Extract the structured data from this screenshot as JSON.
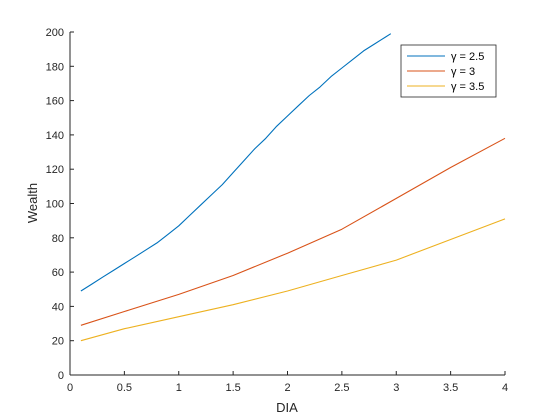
{
  "chart_data": {
    "type": "line",
    "title": "",
    "xlabel": "DIA",
    "ylabel": "Wealth",
    "xlim": [
      0,
      4
    ],
    "ylim": [
      0,
      200
    ],
    "xticks": [
      0,
      0.5,
      1,
      1.5,
      2,
      2.5,
      3,
      3.5,
      4
    ],
    "xtick_labels": [
      "0",
      "0.5",
      "1",
      "1.5",
      "2",
      "2.5",
      "3",
      "3.5",
      "4"
    ],
    "yticks": [
      0,
      20,
      40,
      60,
      80,
      100,
      120,
      140,
      160,
      180,
      200
    ],
    "ytick_labels": [
      "0",
      "20",
      "40",
      "60",
      "80",
      "100",
      "120",
      "140",
      "160",
      "180",
      "200"
    ],
    "grid": false,
    "legend_position": "top-right",
    "series": [
      {
        "name": "γ = 2.5",
        "color": "#0072BD",
        "x": [
          0.1,
          0.2,
          0.3,
          0.4,
          0.5,
          0.6,
          0.7,
          0.8,
          0.9,
          1.0,
          1.1,
          1.2,
          1.3,
          1.4,
          1.5,
          1.6,
          1.7,
          1.8,
          1.9,
          2.0,
          2.1,
          2.2,
          2.3,
          2.4,
          2.5,
          2.6,
          2.7,
          2.8,
          2.9,
          2.95
        ],
        "y": [
          49,
          53,
          57,
          61,
          65,
          69,
          73,
          77,
          82,
          87,
          93,
          99,
          105,
          111,
          118,
          125,
          132,
          138,
          145,
          151,
          157,
          163,
          168,
          174,
          179,
          184,
          189,
          193,
          197,
          199
        ]
      },
      {
        "name": "γ = 3",
        "color": "#D95319",
        "x": [
          0.1,
          0.5,
          1.0,
          1.5,
          2.0,
          2.5,
          3.0,
          3.5,
          4.0
        ],
        "y": [
          29,
          37,
          47,
          58,
          71,
          85,
          103,
          121,
          138
        ]
      },
      {
        "name": "γ = 3.5",
        "color": "#EDB120",
        "x": [
          0.1,
          0.5,
          1.0,
          1.5,
          2.0,
          2.5,
          3.0,
          3.5,
          4.0
        ],
        "y": [
          20,
          27,
          34,
          41,
          49,
          58,
          67,
          79,
          91
        ]
      }
    ]
  }
}
